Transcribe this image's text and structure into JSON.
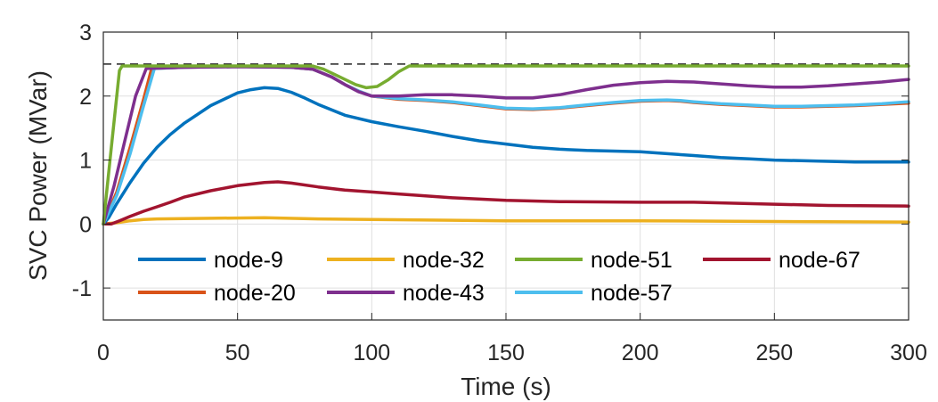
{
  "chart_data": {
    "type": "line",
    "title": "",
    "xlabel": "Time (s)",
    "ylabel": "SVC Power (MVar)",
    "xlim": [
      0,
      300
    ],
    "ylim": [
      -1.5,
      3
    ],
    "xticks": [
      0,
      50,
      100,
      150,
      200,
      250,
      300
    ],
    "yticks": [
      -1,
      0,
      1,
      2,
      3
    ],
    "grid": true,
    "legend_position": "lower-center",
    "reference_line": {
      "y": 2.5,
      "style": "dashed"
    },
    "series": [
      {
        "name": "node-9",
        "color": "#0072BD",
        "x": [
          0,
          2,
          5,
          10,
          15,
          20,
          25,
          30,
          40,
          50,
          55,
          60,
          65,
          70,
          75,
          80,
          90,
          100,
          110,
          120,
          130,
          140,
          150,
          160,
          170,
          180,
          190,
          200,
          210,
          220,
          230,
          240,
          250,
          260,
          270,
          280,
          290,
          300
        ],
        "y": [
          0,
          0.1,
          0.32,
          0.65,
          0.95,
          1.2,
          1.4,
          1.57,
          1.85,
          2.05,
          2.1,
          2.13,
          2.12,
          2.06,
          1.97,
          1.87,
          1.7,
          1.6,
          1.52,
          1.45,
          1.37,
          1.3,
          1.25,
          1.2,
          1.17,
          1.15,
          1.14,
          1.13,
          1.1,
          1.07,
          1.04,
          1.02,
          1.0,
          0.99,
          0.98,
          0.97,
          0.97,
          0.97
        ]
      },
      {
        "name": "node-32",
        "color": "#EDB120",
        "x": [
          0,
          5,
          10,
          15,
          20,
          40,
          60,
          80,
          100,
          150,
          200,
          250,
          300
        ],
        "y": [
          0,
          0.02,
          0.05,
          0.07,
          0.08,
          0.09,
          0.1,
          0.08,
          0.07,
          0.05,
          0.05,
          0.04,
          0.03
        ]
      },
      {
        "name": "node-51",
        "color": "#77AC30",
        "x": [
          0,
          3,
          6,
          7,
          20,
          50,
          78,
          82,
          88,
          94,
          98,
          102,
          106,
          110,
          114,
          120,
          150,
          200,
          250,
          300
        ],
        "y": [
          0,
          1.2,
          2.4,
          2.47,
          2.47,
          2.47,
          2.47,
          2.42,
          2.3,
          2.18,
          2.13,
          2.15,
          2.25,
          2.38,
          2.47,
          2.47,
          2.47,
          2.47,
          2.47,
          2.47
        ]
      },
      {
        "name": "node-67",
        "color": "#A2142F",
        "x": [
          0,
          3,
          6,
          10,
          15,
          20,
          25,
          30,
          40,
          50,
          60,
          65,
          70,
          80,
          90,
          100,
          110,
          120,
          130,
          150,
          170,
          200,
          220,
          250,
          270,
          300
        ],
        "y": [
          0,
          0.0,
          0.05,
          0.12,
          0.2,
          0.27,
          0.34,
          0.42,
          0.52,
          0.6,
          0.65,
          0.66,
          0.64,
          0.58,
          0.53,
          0.5,
          0.47,
          0.44,
          0.41,
          0.37,
          0.35,
          0.34,
          0.34,
          0.31,
          0.29,
          0.28
        ]
      },
      {
        "name": "node-20",
        "color": "#D95319",
        "x": [
          0,
          5,
          10,
          15,
          18,
          30,
          50,
          70,
          78,
          85,
          90,
          95,
          100,
          110,
          120,
          130,
          140,
          150,
          160,
          170,
          180,
          190,
          200,
          210,
          215,
          220,
          230,
          240,
          250,
          260,
          270,
          280,
          290,
          300
        ],
        "y": [
          0,
          0.5,
          1.2,
          1.95,
          2.43,
          2.45,
          2.46,
          2.45,
          2.42,
          2.3,
          2.18,
          2.08,
          2.0,
          1.95,
          1.93,
          1.9,
          1.85,
          1.8,
          1.79,
          1.81,
          1.85,
          1.89,
          1.92,
          1.93,
          1.92,
          1.9,
          1.87,
          1.85,
          1.83,
          1.83,
          1.84,
          1.85,
          1.87,
          1.89
        ]
      },
      {
        "name": "node-43",
        "color": "#7E2F8E",
        "x": [
          0,
          4,
          8,
          12,
          16,
          30,
          50,
          70,
          78,
          85,
          90,
          95,
          100,
          110,
          120,
          130,
          140,
          150,
          160,
          170,
          180,
          190,
          200,
          210,
          220,
          230,
          240,
          250,
          260,
          270,
          280,
          290,
          300
        ],
        "y": [
          0,
          0.6,
          1.3,
          2.0,
          2.43,
          2.45,
          2.46,
          2.45,
          2.42,
          2.3,
          2.18,
          2.07,
          2.0,
          2.0,
          2.02,
          2.02,
          2.0,
          1.97,
          1.97,
          2.02,
          2.1,
          2.17,
          2.21,
          2.23,
          2.22,
          2.19,
          2.16,
          2.14,
          2.14,
          2.16,
          2.19,
          2.22,
          2.26
        ]
      },
      {
        "name": "node-57",
        "color": "#4DBEEE",
        "x": [
          0,
          5,
          10,
          15,
          19,
          30,
          50,
          70,
          78,
          85,
          90,
          95,
          100,
          110,
          120,
          130,
          140,
          150,
          160,
          170,
          180,
          190,
          200,
          210,
          215,
          220,
          230,
          240,
          250,
          260,
          270,
          280,
          290,
          300
        ],
        "y": [
          0,
          0.45,
          1.1,
          1.85,
          2.43,
          2.45,
          2.46,
          2.45,
          2.42,
          2.3,
          2.18,
          2.08,
          2.0,
          1.96,
          1.94,
          1.91,
          1.86,
          1.81,
          1.8,
          1.82,
          1.86,
          1.9,
          1.93,
          1.94,
          1.93,
          1.91,
          1.88,
          1.86,
          1.84,
          1.84,
          1.85,
          1.86,
          1.88,
          1.91
        ]
      }
    ]
  }
}
